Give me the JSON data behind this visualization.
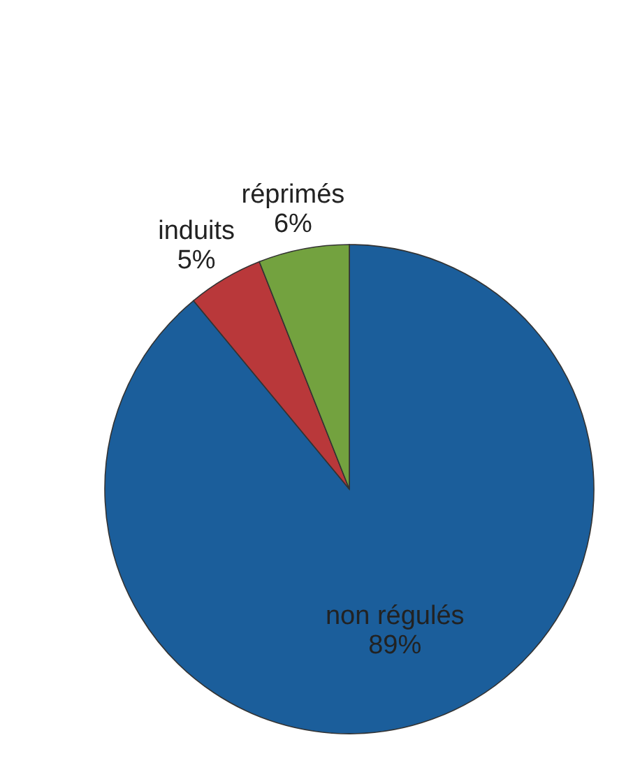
{
  "chart_data": {
    "type": "pie",
    "categories": [
      "non régulés",
      "induits",
      "réprimés"
    ],
    "values": [
      89,
      5,
      6
    ],
    "value_labels": [
      "89%",
      "5%",
      "6%"
    ],
    "colors": [
      "#1b5e9b",
      "#b9383a",
      "#73a23f"
    ]
  }
}
